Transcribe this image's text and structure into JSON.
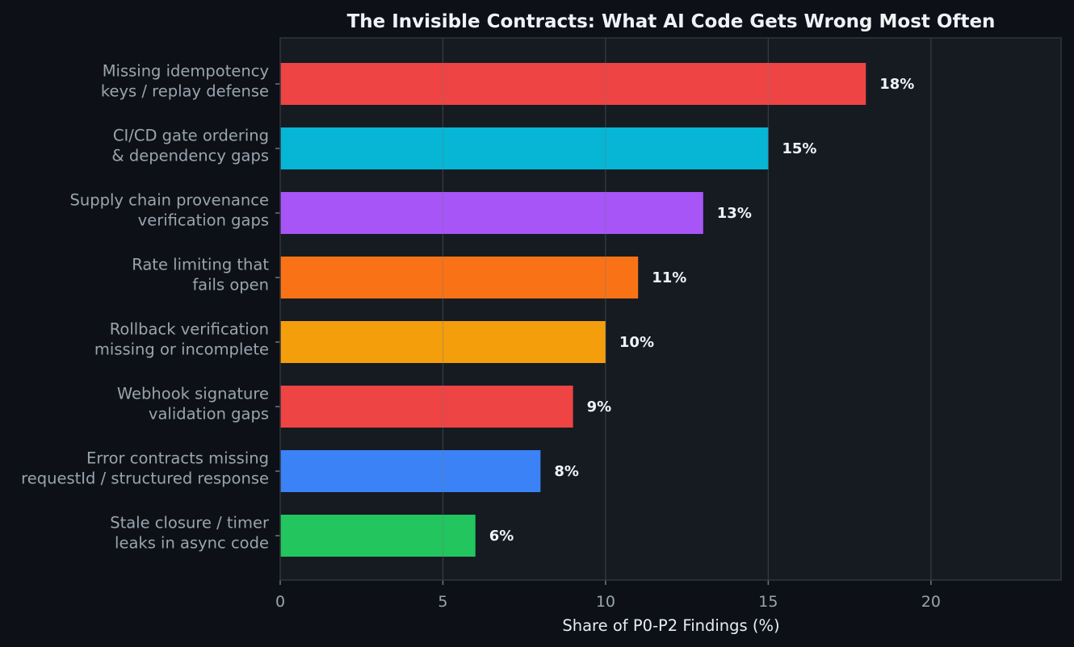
{
  "chart_data": {
    "type": "bar",
    "orientation": "horizontal",
    "title": "The Invisible Contracts: What AI Code Gets Wrong Most Often",
    "xlabel": "Share of P0-P2 Findings (%)",
    "ylabel": "",
    "xlim": [
      0,
      24
    ],
    "xticks": [
      0,
      5,
      10,
      15,
      20
    ],
    "grid": true,
    "categories": [
      [
        "Missing idempotency",
        "keys / replay defense"
      ],
      [
        "CI/CD gate ordering",
        "& dependency gaps"
      ],
      [
        "Supply chain provenance",
        "verification gaps"
      ],
      [
        "Rate limiting that",
        "fails open"
      ],
      [
        "Rollback verification",
        "missing or incomplete"
      ],
      [
        "Webhook signature",
        "validation gaps"
      ],
      [
        "Error contracts missing",
        "requestId / structured response"
      ],
      [
        "Stale closure / timer",
        "leaks in async code"
      ]
    ],
    "values": [
      18,
      15,
      13,
      11,
      10,
      9,
      8,
      6
    ],
    "value_labels": [
      "18%",
      "15%",
      "13%",
      "11%",
      "10%",
      "9%",
      "8%",
      "6%"
    ],
    "colors": [
      "#ef4444",
      "#06b6d4",
      "#a855f7",
      "#f97316",
      "#f59e0b",
      "#ef4444",
      "#3b82f6",
      "#22c55e"
    ]
  },
  "theme": {
    "page_background": "#0d1117",
    "plot_background": "#161b22",
    "frame_color": "#30363d",
    "grid_color": "#6e7681"
  }
}
